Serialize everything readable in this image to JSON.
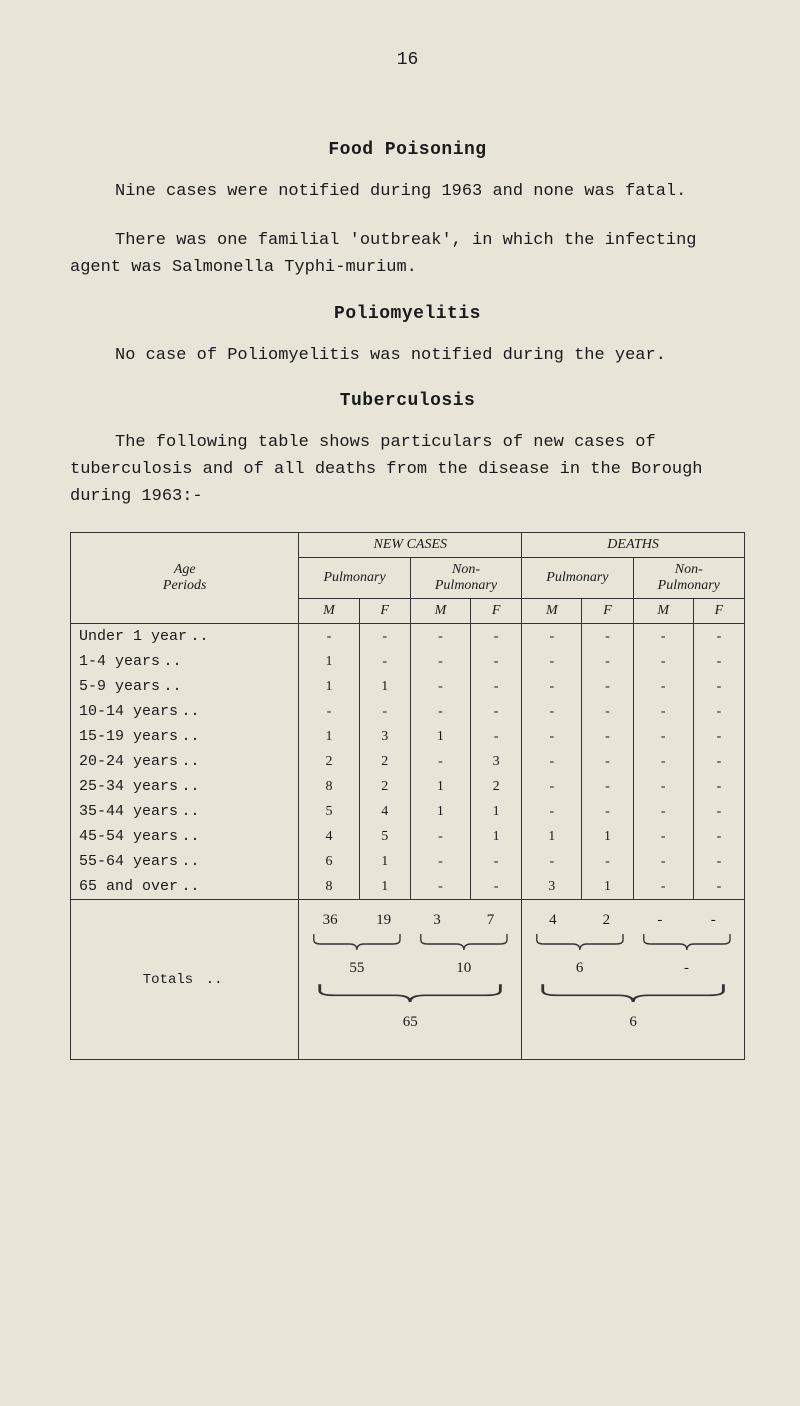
{
  "page_number": "16",
  "sections": {
    "food_poisoning": {
      "title": "Food Poisoning",
      "p1": "Nine cases were notified during 1963 and none was fatal.",
      "p2": "There was one familial 'outbreak', in which the infecting agent was Salmonella Typhi-murium."
    },
    "poliomyelitis": {
      "title": "Poliomyelitis",
      "p1": "No case of Poliomyelitis was notified during the year."
    },
    "tuberculosis": {
      "title": "Tuberculosis",
      "p1": "The following table shows particulars of new cases of tuberculosis and of all deaths from the disease in the Borough during 1963:-"
    }
  },
  "table": {
    "header": {
      "age_periods": "Age\nPeriods",
      "new_cases": "NEW CASES",
      "deaths": "DEATHS",
      "pulmonary": "Pulmonary",
      "non_pulmonary": "Non-\nPulmonary",
      "m": "M",
      "f": "F"
    },
    "rows": [
      {
        "label": "Under 1 year",
        "dots": "..",
        "nc_pm": "-",
        "nc_pf": "-",
        "nc_nm": "-",
        "nc_nf": "-",
        "d_pm": "-",
        "d_pf": "-",
        "d_nm": "-",
        "d_nf": "-"
      },
      {
        "label": "1-4 years",
        "dots": "..",
        "nc_pm": "1",
        "nc_pf": "-",
        "nc_nm": "-",
        "nc_nf": "-",
        "d_pm": "-",
        "d_pf": "-",
        "d_nm": "-",
        "d_nf": "-"
      },
      {
        "label": "5-9 years",
        "dots": "..",
        "nc_pm": "1",
        "nc_pf": "1",
        "nc_nm": "-",
        "nc_nf": "-",
        "d_pm": "-",
        "d_pf": "-",
        "d_nm": "-",
        "d_nf": "-"
      },
      {
        "label": "10-14 years",
        "dots": "..",
        "nc_pm": "-",
        "nc_pf": "-",
        "nc_nm": "-",
        "nc_nf": "-",
        "d_pm": "-",
        "d_pf": "-",
        "d_nm": "-",
        "d_nf": "-"
      },
      {
        "label": "15-19 years",
        "dots": "..",
        "nc_pm": "1",
        "nc_pf": "3",
        "nc_nm": "1",
        "nc_nf": "-",
        "d_pm": "-",
        "d_pf": "-",
        "d_nm": "-",
        "d_nf": "-"
      },
      {
        "label": "20-24 years",
        "dots": "..",
        "nc_pm": "2",
        "nc_pf": "2",
        "nc_nm": "-",
        "nc_nf": "3",
        "d_pm": "-",
        "d_pf": "-",
        "d_nm": "-",
        "d_nf": "-"
      },
      {
        "label": "25-34 years",
        "dots": "..",
        "nc_pm": "8",
        "nc_pf": "2",
        "nc_nm": "1",
        "nc_nf": "2",
        "d_pm": "-",
        "d_pf": "-",
        "d_nm": "-",
        "d_nf": "-"
      },
      {
        "label": "35-44 years",
        "dots": "..",
        "nc_pm": "5",
        "nc_pf": "4",
        "nc_nm": "1",
        "nc_nf": "1",
        "d_pm": "-",
        "d_pf": "-",
        "d_nm": "-",
        "d_nf": "-"
      },
      {
        "label": "45-54 years",
        "dots": "..",
        "nc_pm": "4",
        "nc_pf": "5",
        "nc_nm": "-",
        "nc_nf": "1",
        "d_pm": "1",
        "d_pf": "1",
        "d_nm": "-",
        "d_nf": "-"
      },
      {
        "label": "55-64 years",
        "dots": "..",
        "nc_pm": "6",
        "nc_pf": "1",
        "nc_nm": "-",
        "nc_nf": "-",
        "d_pm": "-",
        "d_pf": "-",
        "d_nm": "-",
        "d_nf": "-"
      },
      {
        "label": "65 and over",
        "dots": "..",
        "nc_pm": "8",
        "nc_pf": "1",
        "nc_nm": "-",
        "nc_nf": "-",
        "d_pm": "3",
        "d_pf": "1",
        "d_nm": "-",
        "d_nf": "-"
      }
    ],
    "totals": {
      "label": "Totals",
      "dots": "..",
      "nc_pm": "36",
      "nc_pf": "19",
      "nc_nm": "3",
      "nc_nf": "7",
      "d_pm": "4",
      "d_pf": "2",
      "d_nm": "-",
      "d_nf": "-",
      "nc_p_sum": "55",
      "nc_n_sum": "10",
      "d_p_sum": "6",
      "d_n_sum": "-",
      "nc_total": "65",
      "d_total": "6"
    }
  },
  "style": {
    "background_color": "#e8e4d8",
    "text_color": "#1a1a1a",
    "body_font": "Courier New",
    "table_font": "Georgia",
    "body_fontsize_pt": 13,
    "title_fontsize_pt": 14,
    "table_fontsize_pt": 11,
    "border_color": "#333333",
    "brace_stroke": "#333333",
    "brace_stroke_width": 1.2
  }
}
